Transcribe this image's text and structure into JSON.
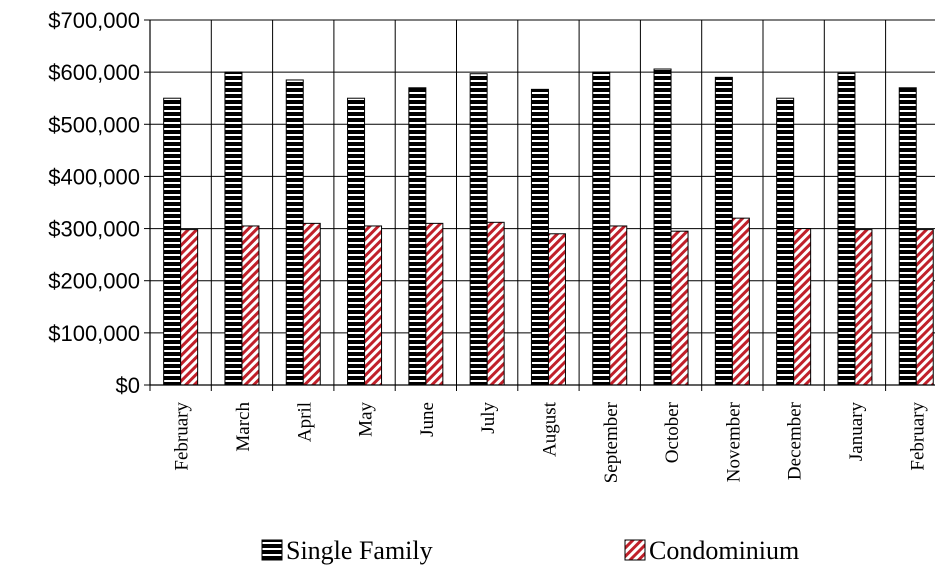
{
  "chart_data": {
    "type": "bar",
    "categories": [
      "February",
      "March",
      "April",
      "May",
      "June",
      "July",
      "August",
      "September",
      "October",
      "November",
      "December",
      "January",
      "February"
    ],
    "series": [
      {
        "name": "Single Family",
        "values": [
          550000,
          600000,
          585000,
          550000,
          570000,
          597000,
          567000,
          600000,
          606000,
          590000,
          550000,
          598000,
          570000
        ]
      },
      {
        "name": "Condominium",
        "values": [
          298000,
          305000,
          310000,
          305000,
          310000,
          312000,
          290000,
          305000,
          295000,
          320000,
          300000,
          298000,
          298000
        ]
      }
    ],
    "ylim": [
      0,
      700000
    ],
    "yticks": [
      0,
      100000,
      200000,
      300000,
      400000,
      500000,
      600000,
      700000
    ],
    "ytick_labels": [
      "$0",
      "$100,000",
      "$200,000",
      "$300,000",
      "$400,000",
      "$500,000",
      "$600,000",
      "$700,000"
    ],
    "grid": "both",
    "legend_position": "bottom",
    "colors": {
      "Single Family": "#000000",
      "Condominium": "#c0202a"
    }
  }
}
